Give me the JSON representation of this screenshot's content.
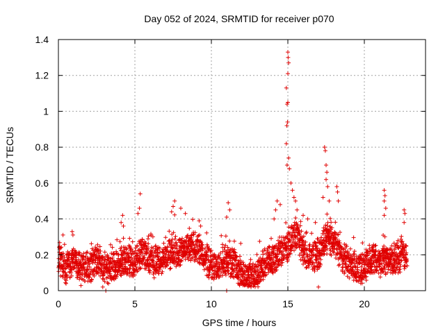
{
  "chart_data": {
    "type": "scatter",
    "title": "Day 052 of 2024, SRMTID for receiver p070",
    "xlabel": "GPS time / hours",
    "ylabel": "SRMTID / TECUs",
    "xlim": [
      0,
      24
    ],
    "ylim": [
      0,
      1.4
    ],
    "x_ticks": [
      0,
      5,
      10,
      15,
      20
    ],
    "y_ticks": [
      0,
      0.2,
      0.4,
      0.6,
      0.8,
      1,
      1.2,
      1.4
    ],
    "x_tick_labels": [
      "0",
      "5",
      "10",
      "15",
      "20"
    ],
    "y_tick_labels": [
      "0",
      "0.2",
      "0.4",
      "0.6",
      "0.8",
      "1",
      "1.2",
      "1.4"
    ],
    "grid": true,
    "marker": "plus",
    "color": "#e00000",
    "baseline_profile": [
      [
        0.0,
        0.18
      ],
      [
        0.5,
        0.13
      ],
      [
        1.0,
        0.17
      ],
      [
        1.5,
        0.11
      ],
      [
        2.0,
        0.13
      ],
      [
        2.5,
        0.17
      ],
      [
        3.0,
        0.13
      ],
      [
        3.5,
        0.11
      ],
      [
        4.0,
        0.15
      ],
      [
        4.5,
        0.17
      ],
      [
        5.0,
        0.16
      ],
      [
        5.5,
        0.22
      ],
      [
        6.0,
        0.17
      ],
      [
        6.5,
        0.16
      ],
      [
        7.0,
        0.2
      ],
      [
        7.5,
        0.22
      ],
      [
        8.0,
        0.21
      ],
      [
        8.5,
        0.23
      ],
      [
        9.0,
        0.25
      ],
      [
        9.5,
        0.19
      ],
      [
        10.0,
        0.15
      ],
      [
        10.5,
        0.14
      ],
      [
        11.0,
        0.17
      ],
      [
        11.5,
        0.14
      ],
      [
        12.0,
        0.09
      ],
      [
        12.5,
        0.07
      ],
      [
        13.0,
        0.1
      ],
      [
        13.5,
        0.15
      ],
      [
        14.0,
        0.18
      ],
      [
        14.5,
        0.2
      ],
      [
        15.0,
        0.25
      ],
      [
        15.5,
        0.33
      ],
      [
        16.0,
        0.22
      ],
      [
        16.5,
        0.18
      ],
      [
        17.0,
        0.2
      ],
      [
        17.5,
        0.3
      ],
      [
        18.0,
        0.27
      ],
      [
        18.5,
        0.2
      ],
      [
        19.0,
        0.15
      ],
      [
        19.5,
        0.12
      ],
      [
        20.0,
        0.13
      ],
      [
        20.5,
        0.18
      ],
      [
        21.0,
        0.16
      ],
      [
        21.5,
        0.18
      ],
      [
        22.0,
        0.17
      ],
      [
        22.5,
        0.2
      ],
      [
        22.8,
        0.19
      ]
    ],
    "notable_points": [
      [
        15.0,
        1.33
      ],
      [
        15.02,
        1.3
      ],
      [
        15.05,
        1.27
      ],
      [
        15.0,
        1.21
      ],
      [
        14.9,
        1.13
      ],
      [
        15.0,
        1.05
      ],
      [
        14.95,
        1.04
      ],
      [
        14.98,
        0.94
      ],
      [
        14.93,
        0.92
      ],
      [
        14.9,
        0.82
      ],
      [
        15.05,
        0.74
      ],
      [
        14.95,
        0.7
      ],
      [
        15.1,
        0.68
      ],
      [
        15.2,
        0.6
      ],
      [
        15.3,
        0.56
      ],
      [
        15.4,
        0.52
      ],
      [
        15.5,
        0.5
      ],
      [
        17.4,
        0.8
      ],
      [
        17.45,
        0.78
      ],
      [
        17.5,
        0.7
      ],
      [
        17.55,
        0.66
      ],
      [
        17.5,
        0.62
      ],
      [
        17.6,
        0.58
      ],
      [
        17.3,
        0.52
      ],
      [
        17.7,
        0.5
      ],
      [
        18.2,
        0.58
      ],
      [
        18.25,
        0.55
      ],
      [
        18.3,
        0.5
      ],
      [
        21.3,
        0.56
      ],
      [
        21.35,
        0.53
      ],
      [
        21.3,
        0.5
      ],
      [
        21.4,
        0.46
      ],
      [
        21.3,
        0.42
      ],
      [
        22.6,
        0.45
      ],
      [
        22.65,
        0.43
      ],
      [
        22.6,
        0.38
      ],
      [
        5.35,
        0.54
      ],
      [
        5.3,
        0.46
      ],
      [
        5.2,
        0.43
      ],
      [
        7.6,
        0.5
      ],
      [
        7.5,
        0.47
      ],
      [
        7.4,
        0.44
      ],
      [
        8.0,
        0.46
      ],
      [
        8.3,
        0.43
      ],
      [
        11.1,
        0.49
      ],
      [
        11.2,
        0.45
      ],
      [
        11.0,
        0.41
      ],
      [
        4.2,
        0.42
      ],
      [
        4.1,
        0.38
      ],
      [
        4.25,
        0.36
      ],
      [
        9.2,
        0.39
      ],
      [
        9.3,
        0.36
      ],
      [
        14.2,
        0.45
      ],
      [
        14.3,
        0.5
      ],
      [
        14.5,
        0.48
      ],
      [
        14.1,
        0.4
      ],
      [
        15.6,
        0.45
      ],
      [
        16.0,
        0.42
      ],
      [
        16.3,
        0.4
      ],
      [
        16.8,
        0.38
      ],
      [
        0.9,
        0.33
      ],
      [
        0.95,
        0.31
      ],
      [
        0.3,
        0.31
      ],
      [
        3.1,
        0.0
      ],
      [
        11.0,
        0.0
      ],
      [
        0.5,
        0.04
      ],
      [
        2.9,
        0.02
      ],
      [
        12.5,
        0.03
      ],
      [
        12.8,
        0.04
      ],
      [
        17.0,
        0.02
      ],
      [
        19.9,
        0.08
      ],
      [
        20.5,
        0.24
      ],
      [
        20.7,
        0.25
      ],
      [
        21.8,
        0.25
      ],
      [
        22.2,
        0.28
      ]
    ]
  }
}
